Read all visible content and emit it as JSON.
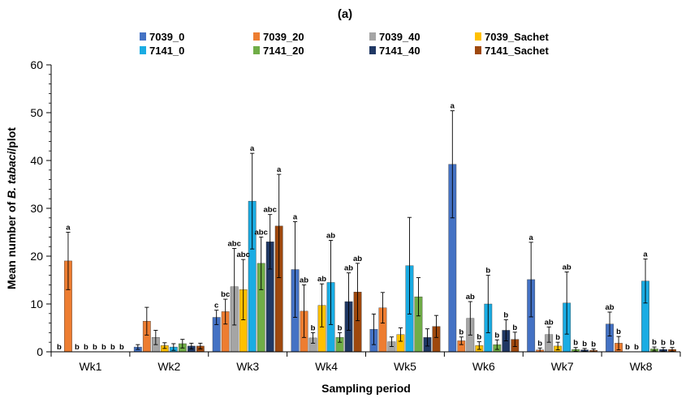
{
  "chart_data": {
    "type": "bar",
    "title": "(a)",
    "xlabel": "Sampling period",
    "ylabel_prefix": "Mean number of ",
    "ylabel_italic": "B. tabaci",
    "ylabel_suffix": "/plot",
    "ylim": [
      0,
      60
    ],
    "yticks": [
      "0",
      "10",
      "20",
      "30",
      "40",
      "50",
      "60"
    ],
    "categories": [
      "Wk1",
      "Wk2",
      "Wk3",
      "Wk4",
      "Wk5",
      "Wk6",
      "Wk7",
      "Wk8"
    ],
    "legend_position": "top",
    "series": [
      {
        "name": "7039_0",
        "color": "#4472C4",
        "values": [
          0,
          1.0,
          7.2,
          17.2,
          4.7,
          39.2,
          15.1,
          5.8
        ],
        "errors": [
          0,
          0.5,
          1.5,
          10.0,
          3.2,
          11.2,
          7.8,
          2.5
        ],
        "letters": [
          "b",
          "",
          "c",
          "a",
          "",
          "a",
          "a",
          "ab"
        ]
      },
      {
        "name": "7039_20",
        "color": "#ED7D31",
        "values": [
          19.0,
          6.4,
          8.4,
          8.5,
          9.2,
          2.3,
          0.4,
          1.8
        ],
        "errors": [
          6.0,
          2.9,
          2.6,
          5.5,
          3.2,
          0.8,
          0.4,
          1.4
        ],
        "letters": [
          "a",
          "",
          "bc",
          "ab",
          "",
          "b",
          "b",
          "b"
        ]
      },
      {
        "name": "7039_40",
        "color": "#A5A5A5",
        "values": [
          0,
          3.0,
          13.6,
          2.9,
          2.1,
          7.0,
          3.6,
          0
        ],
        "errors": [
          0,
          1.5,
          8.0,
          1.1,
          1.0,
          3.5,
          1.6,
          0
        ],
        "letters": [
          "b",
          "",
          "abc",
          "b",
          "",
          "ab",
          "ab",
          "b"
        ]
      },
      {
        "name": "7039_Sachet",
        "color": "#FFC000",
        "values": [
          0,
          1.3,
          13.0,
          9.7,
          3.6,
          1.3,
          1.2,
          0
        ],
        "errors": [
          0,
          0.6,
          6.3,
          4.5,
          1.4,
          0.8,
          0.8,
          0
        ],
        "letters": [
          "b",
          "",
          "abc",
          "ab",
          "",
          "b",
          "b",
          "b"
        ]
      },
      {
        "name": "7141_0",
        "color": "#1AACE3",
        "values": [
          0,
          1.0,
          31.5,
          14.5,
          18.0,
          10.0,
          10.2,
          14.8
        ],
        "errors": [
          0,
          0.7,
          10.0,
          8.8,
          10.1,
          6.0,
          6.5,
          4.6
        ],
        "letters": [
          "b",
          "",
          "a",
          "ab",
          "",
          "b",
          "ab",
          "a"
        ]
      },
      {
        "name": "7141_20",
        "color": "#70AD47",
        "values": [
          0,
          1.7,
          18.5,
          3.0,
          11.5,
          1.5,
          0.5,
          0.6
        ],
        "errors": [
          0,
          0.9,
          5.5,
          1.0,
          4.0,
          1.0,
          0.4,
          0.4
        ],
        "letters": [
          "b",
          "",
          "abc",
          "b",
          "",
          "b",
          "b",
          "b"
        ]
      },
      {
        "name": "7141_40",
        "color": "#203864",
        "values": [
          0,
          1.2,
          23.0,
          10.5,
          3.0,
          4.5,
          0.4,
          0.5
        ],
        "errors": [
          0,
          0.6,
          5.7,
          6.0,
          1.8,
          2.2,
          0.3,
          0.4
        ],
        "letters": [
          "b",
          "",
          "abc",
          "ab",
          "",
          "b",
          "b",
          "b"
        ]
      },
      {
        "name": "7141_Sachet",
        "color": "#9E480E",
        "values": [
          0,
          1.2,
          26.3,
          12.5,
          5.3,
          2.6,
          0.3,
          0.5
        ],
        "errors": [
          0,
          0.6,
          10.8,
          6.0,
          2.3,
          1.5,
          0.3,
          0.4
        ],
        "letters": [
          "b",
          "",
          "a",
          "ab",
          "",
          "b",
          "b",
          "b"
        ]
      }
    ]
  }
}
